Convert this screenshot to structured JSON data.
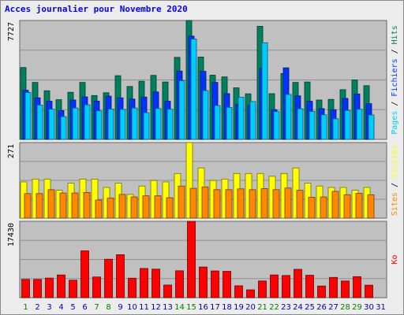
{
  "title": "Acces journalier pour Novembre 2020",
  "colors": {
    "hits": "#00805f",
    "files": "#0033ff",
    "pages": "#00ccff",
    "visits": "#ffff00",
    "sites": "#ff8800",
    "kb": "#ff0000",
    "weekend_label": "#007f00",
    "weekday_label": "#0000aa",
    "title": "#0000ff"
  },
  "chart_data": [
    {
      "type": "bar",
      "title": "",
      "ymax_label": "7727",
      "ylim": [
        0,
        7727
      ],
      "right_legend": [
        {
          "text": "Pages",
          "color": "#00ccff"
        },
        {
          "text": " / ",
          "color": "#000000"
        },
        {
          "text": "Fichiers",
          "color": "#0033ff"
        },
        {
          "text": " / ",
          "color": "#000000"
        },
        {
          "text": "Hits",
          "color": "#00805f"
        }
      ],
      "categories": [
        "1",
        "2",
        "3",
        "4",
        "5",
        "6",
        "7",
        "8",
        "9",
        "10",
        "11",
        "12",
        "13",
        "14",
        "15",
        "16",
        "17",
        "18",
        "19",
        "20",
        "21",
        "22",
        "23",
        "24",
        "25",
        "26",
        "27",
        "28",
        "29",
        "30",
        "31"
      ],
      "series": [
        {
          "name": "Hits",
          "values": [
            4670,
            3700,
            3160,
            2580,
            3060,
            3700,
            2850,
            3030,
            4140,
            3440,
            3780,
            4160,
            3730,
            5330,
            7727,
            5350,
            4170,
            4060,
            3350,
            2960,
            7350,
            2970,
            4280,
            3700,
            3730,
            2560,
            2600,
            3230,
            3860,
            3490,
            0
          ]
        },
        {
          "name": "Fichiers",
          "values": [
            3190,
            2700,
            2480,
            1870,
            2560,
            2760,
            2490,
            2810,
            2700,
            2620,
            2750,
            3080,
            2480,
            4440,
            6710,
            4420,
            3700,
            2970,
            2260,
            2210,
            4620,
            1930,
            4650,
            2830,
            2480,
            2000,
            1930,
            2660,
            2950,
            2320,
            0
          ]
        },
        {
          "name": "Pages",
          "values": [
            3050,
            2230,
            1960,
            1480,
            2040,
            2250,
            1860,
            1970,
            1950,
            2040,
            1740,
            2010,
            1960,
            3810,
            6520,
            3170,
            2200,
            2080,
            2740,
            2460,
            6280,
            1810,
            2920,
            1990,
            1820,
            1600,
            1340,
            1880,
            1960,
            1590,
            0
          ]
        }
      ]
    },
    {
      "type": "bar",
      "title": "",
      "ymax_label": "271",
      "ylim": [
        0,
        271
      ],
      "right_legend": [
        {
          "text": "Sites",
          "color": "#ff8800"
        },
        {
          "text": " / ",
          "color": "#000000"
        },
        {
          "text": "Visites",
          "color": "#ffff00"
        }
      ],
      "categories": [
        "1",
        "2",
        "3",
        "4",
        "5",
        "6",
        "7",
        "8",
        "9",
        "10",
        "11",
        "12",
        "13",
        "14",
        "15",
        "16",
        "17",
        "18",
        "19",
        "20",
        "21",
        "22",
        "23",
        "24",
        "25",
        "26",
        "27",
        "28",
        "29",
        "30",
        "31"
      ],
      "series": [
        {
          "name": "Visites",
          "values": [
            130,
            140,
            140,
            100,
            125,
            140,
            140,
            110,
            125,
            85,
            115,
            135,
            130,
            160,
            271,
            180,
            135,
            140,
            160,
            160,
            160,
            150,
            160,
            180,
            125,
            115,
            110,
            110,
            100,
            110,
            0
          ]
        },
        {
          "name": "Sites",
          "values": [
            88,
            88,
            102,
            90,
            90,
            92,
            65,
            72,
            85,
            76,
            80,
            80,
            73,
            115,
            107,
            112,
            102,
            102,
            105,
            102,
            106,
            102,
            108,
            100,
            75,
            76,
            96,
            84,
            89,
            84,
            0
          ]
        }
      ]
    },
    {
      "type": "bar",
      "title": "",
      "ymax_label": "17430",
      "ylim": [
        0,
        17430
      ],
      "right_legend": [
        {
          "text": "Ko",
          "color": "#ff0000"
        }
      ],
      "categories": [
        "1",
        "2",
        "3",
        "4",
        "5",
        "6",
        "7",
        "8",
        "9",
        "10",
        "11",
        "12",
        "13",
        "14",
        "15",
        "16",
        "17",
        "18",
        "19",
        "20",
        "21",
        "22",
        "23",
        "24",
        "25",
        "26",
        "27",
        "28",
        "29",
        "30",
        "31"
      ],
      "series": [
        {
          "name": "Ko",
          "values": [
            4160,
            4160,
            4470,
            5180,
            3990,
            10680,
            4720,
            8770,
            9800,
            4450,
            6660,
            6510,
            2880,
            6140,
            17430,
            6990,
            6100,
            6010,
            2710,
            1790,
            3810,
            5190,
            5060,
            6470,
            5120,
            2660,
            4620,
            3800,
            4790,
            2850,
            0
          ]
        }
      ]
    }
  ],
  "day_labels": [
    "1",
    "2",
    "3",
    "4",
    "5",
    "6",
    "7",
    "8",
    "9",
    "10",
    "11",
    "12",
    "13",
    "14",
    "15",
    "16",
    "17",
    "18",
    "19",
    "20",
    "21",
    "22",
    "23",
    "24",
    "25",
    "26",
    "27",
    "28",
    "29",
    "30",
    "31"
  ],
  "weekend_days": [
    1,
    7,
    8,
    14,
    15,
    21,
    22,
    28,
    29
  ]
}
